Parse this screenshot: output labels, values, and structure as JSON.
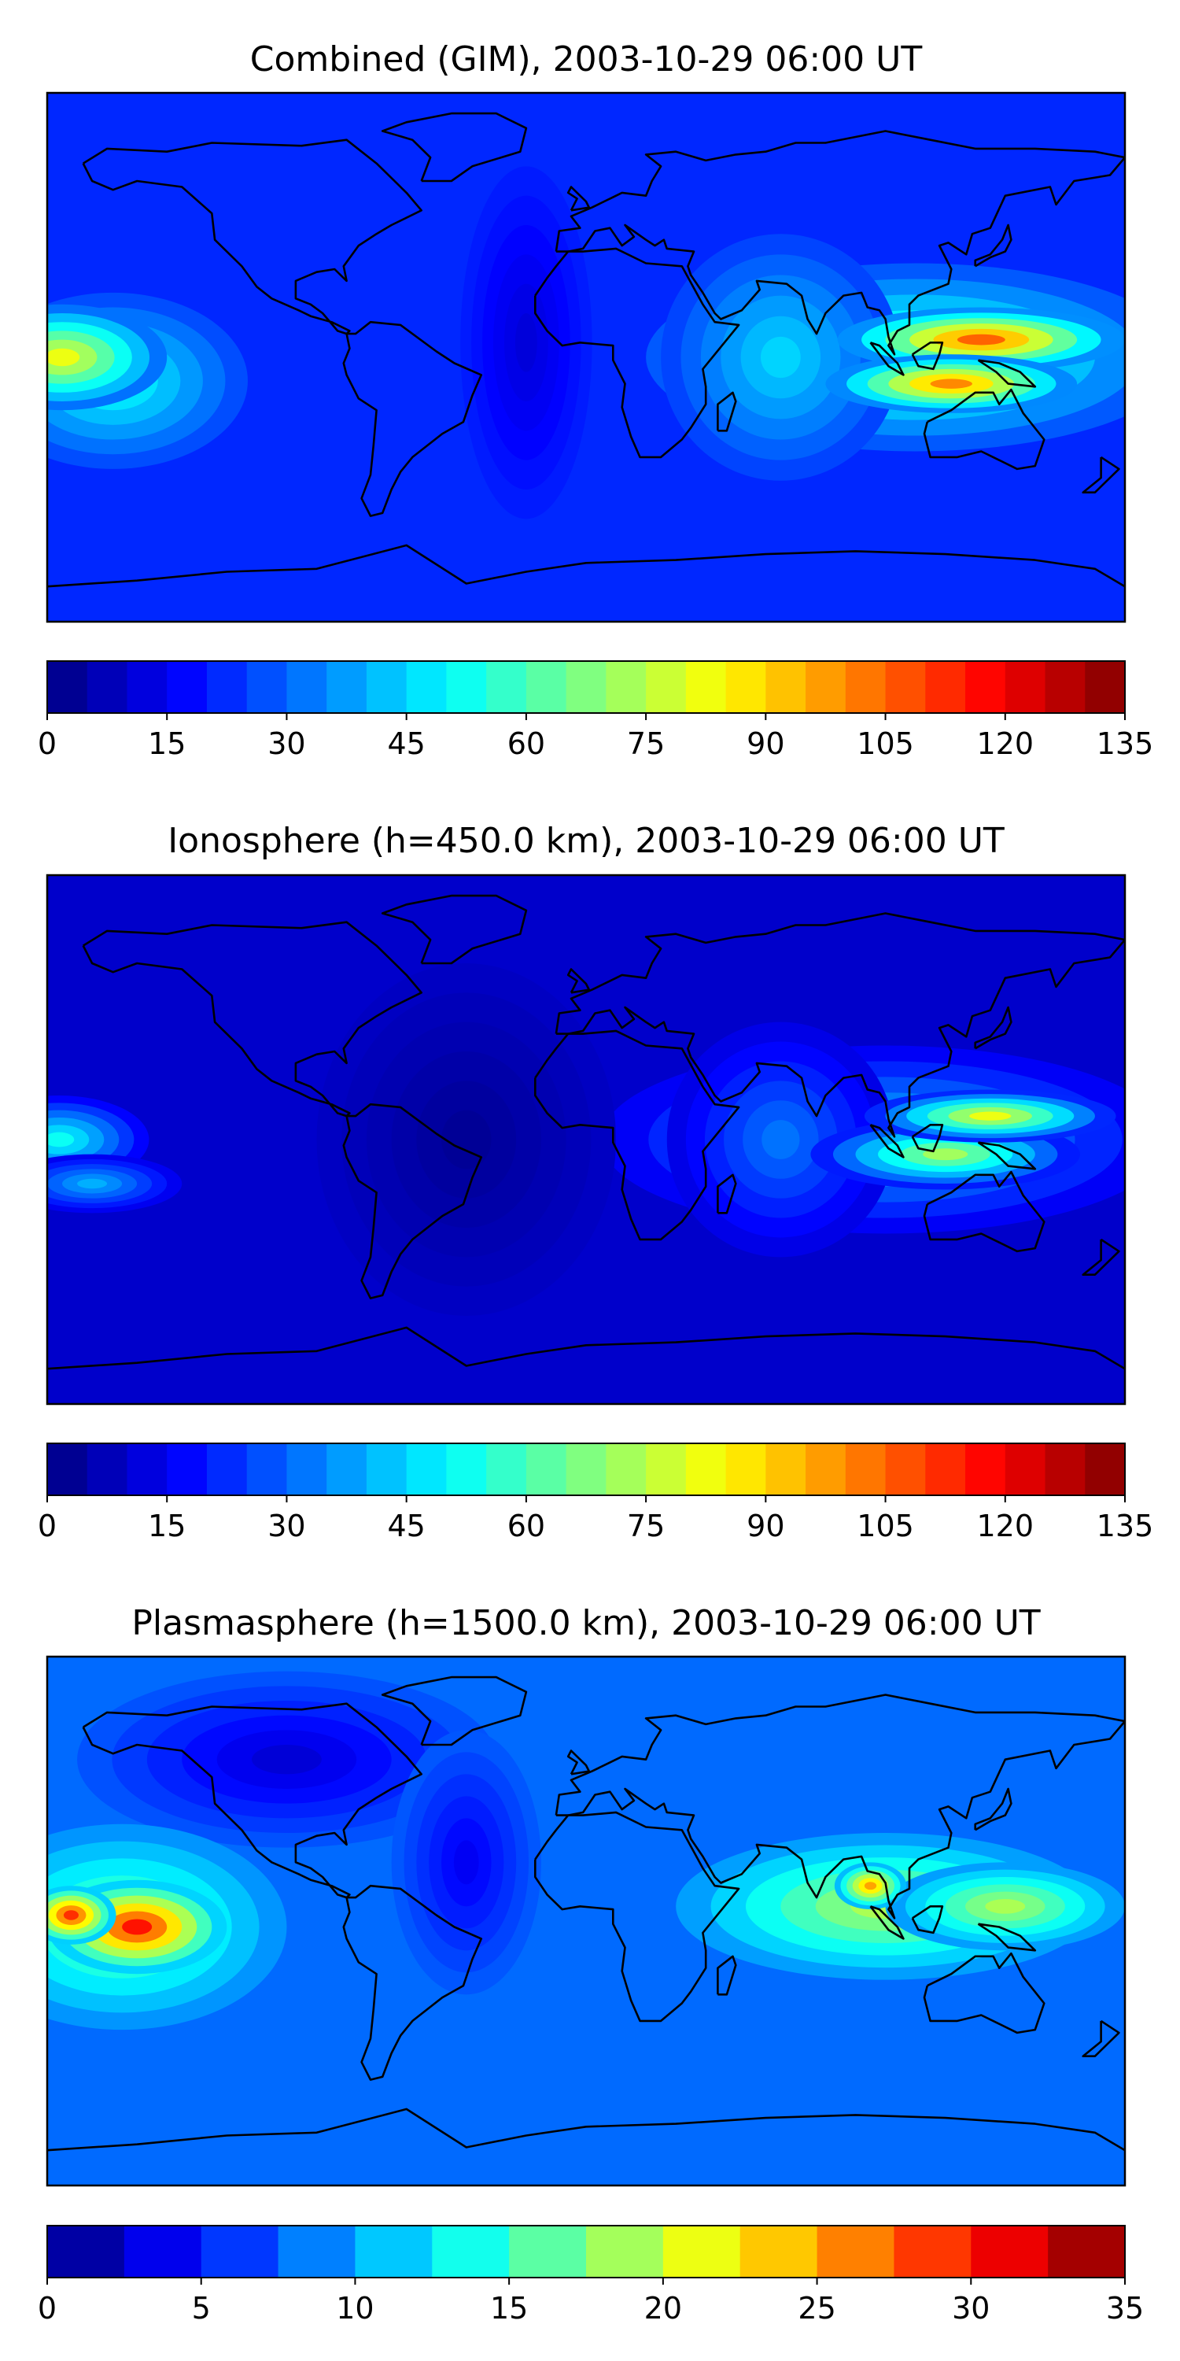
{
  "figure": {
    "panels": [
      {
        "title": "Combined (GIM), 2003-10-29 06:00 UT",
        "ticks": [
          "0",
          "15",
          "30",
          "45",
          "60",
          "75",
          "90",
          "105",
          "120",
          "135"
        ]
      },
      {
        "title": "Ionosphere  (h=450.0 km), 2003-10-29 06:00 UT",
        "ticks": [
          "0",
          "15",
          "30",
          "45",
          "60",
          "75",
          "90",
          "105",
          "120",
          "135"
        ]
      },
      {
        "title": "Plasmasphere (h=1500.0 km), 2003-10-29 06:00 UT",
        "ticks": [
          "0",
          "5",
          "10",
          "15",
          "20",
          "25",
          "30",
          "35"
        ]
      }
    ]
  },
  "chart_data": [
    {
      "type": "heatmap",
      "title": "Combined (GIM), 2003-10-29 06:00 UT",
      "map": "world, equirectangular, lon -180..180, lat -90..90, coastlines",
      "xlim": [
        -180,
        180
      ],
      "ylim": [
        -90,
        90
      ],
      "colormap": "jet",
      "colorbar": {
        "range": [
          0,
          135
        ],
        "levels": 27,
        "step": 5,
        "ticks": [
          0,
          15,
          30,
          45,
          60,
          75,
          90,
          105,
          120,
          135
        ]
      },
      "background_level": 22,
      "features": [
        {
          "lon": 132,
          "lat": 6,
          "rx": 48,
          "ry": 11,
          "value": 105
        },
        {
          "lon": 122,
          "lat": -9,
          "rx": 42,
          "ry": 10,
          "value": 100
        },
        {
          "lon": 110,
          "lat": 0,
          "rx": 90,
          "ry": 32,
          "value": 62
        },
        {
          "lon": 65,
          "lat": 0,
          "rx": 40,
          "ry": 42,
          "value": 45
        },
        {
          "lon": -175,
          "lat": 0,
          "rx": 35,
          "ry": 18,
          "value": 82
        },
        {
          "lon": -158,
          "lat": -8,
          "rx": 45,
          "ry": 30,
          "value": 52
        },
        {
          "lon": -20,
          "lat": 5,
          "rx": 22,
          "ry": 60,
          "value": 12
        }
      ]
    },
    {
      "type": "heatmap",
      "title": "Ionosphere  (h=450.0 km), 2003-10-29 06:00 UT",
      "map": "world, equirectangular, lon -180..180, lat -90..90, coastlines",
      "xlim": [
        -180,
        180
      ],
      "ylim": [
        -90,
        90
      ],
      "colormap": "jet",
      "colorbar": {
        "range": [
          0,
          135
        ],
        "levels": 27,
        "step": 5,
        "ticks": [
          0,
          15,
          30,
          45,
          60,
          75,
          90,
          105,
          120,
          135
        ]
      },
      "background_level": 10,
      "features": [
        {
          "lon": 135,
          "lat": 8,
          "rx": 42,
          "ry": 9,
          "value": 82
        },
        {
          "lon": 120,
          "lat": -5,
          "rx": 45,
          "ry": 12,
          "value": 72
        },
        {
          "lon": 100,
          "lat": 0,
          "rx": 95,
          "ry": 32,
          "value": 45
        },
        {
          "lon": 65,
          "lat": 0,
          "rx": 38,
          "ry": 40,
          "value": 32
        },
        {
          "lon": -176,
          "lat": 0,
          "rx": 30,
          "ry": 15,
          "value": 52
        },
        {
          "lon": -165,
          "lat": -15,
          "rx": 30,
          "ry": 10,
          "value": 40
        },
        {
          "lon": -40,
          "lat": 0,
          "rx": 50,
          "ry": 60,
          "value": 3
        }
      ]
    },
    {
      "type": "heatmap",
      "title": "Plasmasphere (h=1500.0 km), 2003-10-29 06:00 UT",
      "map": "world, equirectangular, lon -180..180, lat -90..90, coastlines",
      "xlim": [
        -180,
        180
      ],
      "ylim": [
        -90,
        90
      ],
      "colormap": "jet",
      "colorbar": {
        "range": [
          0,
          35
        ],
        "levels": 14,
        "step": 2.5,
        "ticks": [
          0,
          5,
          10,
          15,
          20,
          25,
          30,
          35
        ]
      },
      "background_level": 8,
      "features": [
        {
          "lon": -150,
          "lat": -2,
          "rx": 30,
          "ry": 16,
          "value": 30
        },
        {
          "lon": -172,
          "lat": 2,
          "rx": 15,
          "ry": 10,
          "value": 29
        },
        {
          "lon": -155,
          "lat": -2,
          "rx": 55,
          "ry": 35,
          "value": 17
        },
        {
          "lon": 95,
          "lat": 12,
          "rx": 12,
          "ry": 8,
          "value": 25
        },
        {
          "lon": 100,
          "lat": 5,
          "rx": 70,
          "ry": 25,
          "value": 19
        },
        {
          "lon": 140,
          "lat": 5,
          "rx": 40,
          "ry": 15,
          "value": 19
        },
        {
          "lon": -100,
          "lat": 55,
          "rx": 70,
          "ry": 30,
          "value": 3
        },
        {
          "lon": -40,
          "lat": 20,
          "rx": 25,
          "ry": 45,
          "value": 4
        }
      ]
    }
  ]
}
